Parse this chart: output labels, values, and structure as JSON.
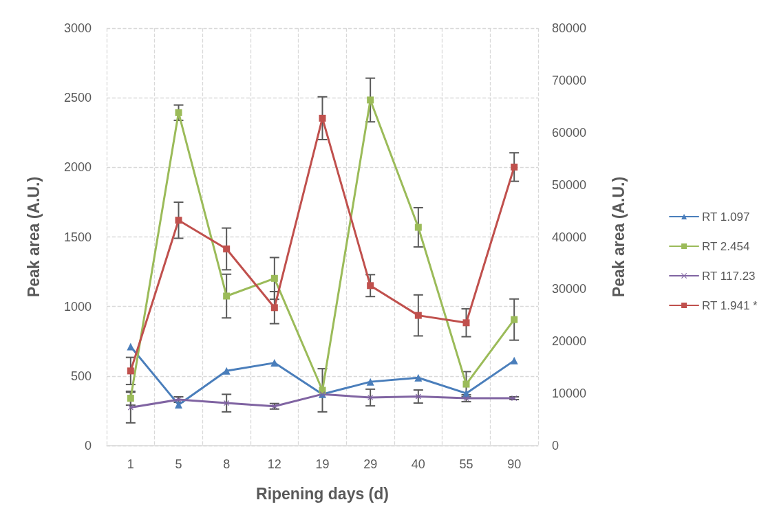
{
  "chart_data": {
    "type": "line",
    "xlabel": "Ripening days (d)",
    "ylabel": "Peak area (A.U.)",
    "y2label": "Peak area (A.U.)",
    "categories": [
      "1",
      "5",
      "8",
      "12",
      "19",
      "29",
      "40",
      "55",
      "90"
    ],
    "ylim": [
      0,
      3000
    ],
    "yticks": [
      0,
      500,
      1000,
      1500,
      2000,
      2500,
      3000
    ],
    "y2lim": [
      0,
      80000
    ],
    "y2ticks": [
      0,
      10000,
      20000,
      30000,
      40000,
      50000,
      60000,
      70000,
      80000
    ],
    "grid": true,
    "legend": "right",
    "line_style": "solid",
    "series": [
      {
        "name": "RT 1.097",
        "color": "#4a7ebb",
        "marker": "triangle",
        "values": [
          712,
          294,
          537,
          595,
          370,
          459,
          488,
          376,
          611
        ]
      },
      {
        "name": "RT 2.454",
        "color": "#9bbb59",
        "marker": "square",
        "values": [
          341,
          2393,
          1075,
          1202,
          398,
          2484,
          1569,
          442,
          906
        ],
        "errors": [
          50,
          55,
          157,
          150,
          155,
          157,
          141,
          90,
          148
        ]
      },
      {
        "name": "RT 117.23",
        "color": "#8064a2",
        "marker": "cross",
        "values": [
          274,
          331,
          306,
          283,
          370,
          346,
          353,
          341,
          341
        ],
        "errors": [
          110,
          20,
          63,
          20,
          null,
          60,
          47,
          25,
          10
        ]
      },
      {
        "name": "RT 1.941 *",
        "color": "#c0504d",
        "marker": "square",
        "axis": "y2",
        "values": [
          14320,
          43200,
          37700,
          26450,
          62750,
          30670,
          24960,
          23550,
          53390
        ],
        "errors": [
          2600,
          3460,
          4000,
          3070,
          4100,
          2100,
          3930,
          2670,
          2730
        ]
      }
    ]
  }
}
